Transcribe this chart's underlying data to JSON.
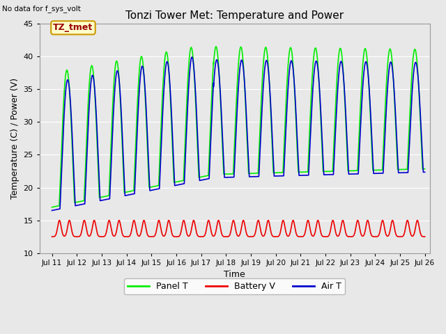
{
  "title": "Tonzi Tower Met: Temperature and Power",
  "no_data_label": "No data for f_sys_volt",
  "annotation_label": "TZ_tmet",
  "xlabel": "Time",
  "ylabel": "Temperature (C) / Power (V)",
  "ylim": [
    10,
    45
  ],
  "xlim_start": 10.5,
  "xlim_end": 26.2,
  "xtick_labels": [
    "Jul 11",
    "Jul 12",
    "Jul 13",
    "Jul 14",
    "Jul 15",
    "Jul 16",
    "Jul 17",
    "Jul 18",
    "Jul 19",
    "Jul 20",
    "Jul 21",
    "Jul 22",
    "Jul 23",
    "Jul 24",
    "Jul 25",
    "Jul 26"
  ],
  "xtick_positions": [
    11,
    12,
    13,
    14,
    15,
    16,
    17,
    18,
    19,
    20,
    21,
    22,
    23,
    24,
    25,
    26
  ],
  "ytick_positions": [
    10,
    15,
    20,
    25,
    30,
    35,
    40,
    45
  ],
  "panel_color": "#00ee00",
  "battery_color": "#ee0000",
  "air_color": "#0000cc",
  "plot_bg_light": "#f0f0f0",
  "plot_bg_dark": "#d8d8d8",
  "legend_labels": [
    "Panel T",
    "Battery V",
    "Air T"
  ],
  "grid_color": "#ffffff",
  "line_width": 1.2,
  "annotation_bg": "#ffffcc",
  "annotation_border": "#cc9900",
  "fig_bg": "#e8e8e8"
}
